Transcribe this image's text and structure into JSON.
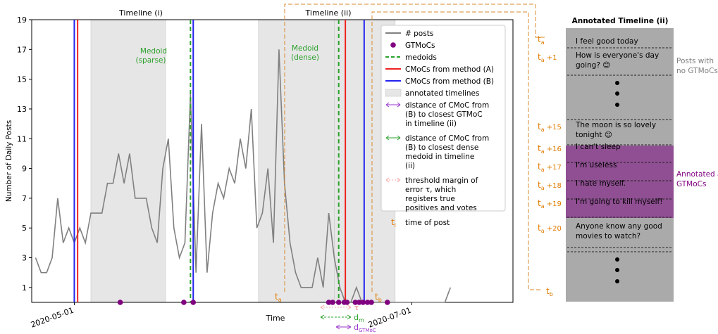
{
  "chart_data": {
    "type": "line",
    "xlabel": "Time",
    "ylabel": "Number of Daily Posts",
    "ylim": [
      0,
      19
    ],
    "y_ticks": [
      1,
      3,
      5,
      7,
      9,
      11,
      13,
      15,
      17,
      19
    ],
    "x_tick_labels": [
      "2020-05-01",
      "2020-07-01"
    ],
    "x_tick_days": [
      0,
      61
    ],
    "xlim_days": [
      -7.7,
      79.3
    ],
    "grid": false,
    "legend_position": "top-right",
    "series": [
      {
        "name": "# posts",
        "color": "#808080",
        "x_days": [
          -7,
          -6,
          -5,
          -4,
          -3,
          -2,
          -1,
          0,
          1,
          2,
          3,
          4,
          5,
          6,
          7,
          8,
          9,
          10,
          11,
          12,
          13,
          14,
          15,
          16,
          17,
          18,
          19,
          20,
          21,
          22,
          23,
          24,
          25,
          26,
          27,
          28,
          29,
          30,
          31,
          32,
          33,
          34,
          35,
          36,
          37,
          38,
          39,
          40,
          41,
          42,
          43,
          44,
          45,
          46,
          47,
          48,
          49,
          50,
          51,
          52,
          53,
          54,
          55,
          56,
          57,
          58,
          59,
          60,
          61,
          62,
          63,
          64,
          65,
          66,
          67,
          68
        ],
        "y": [
          3,
          2,
          2,
          3,
          7,
          4,
          5,
          4,
          5,
          4,
          6,
          6,
          6,
          8,
          8,
          10,
          8,
          10,
          7,
          7,
          7,
          5,
          4,
          9,
          11,
          5,
          3,
          4,
          14,
          2,
          12,
          2,
          6,
          8,
          7,
          9,
          8,
          11,
          9,
          13,
          5,
          6,
          9,
          4,
          17,
          8,
          4,
          2,
          1,
          1,
          1,
          3,
          1,
          6,
          3,
          1,
          0,
          0,
          1,
          0,
          0,
          0,
          0,
          0,
          0,
          0,
          0,
          0,
          0,
          0,
          0,
          0,
          0,
          0,
          0,
          1
        ]
      }
    ],
    "gtmoc_days": [
      8.3,
      19.8,
      21.5,
      46.0,
      46.7,
      47.8,
      48.8,
      49.3,
      50.8,
      51.5,
      52.2,
      53.0,
      53.7,
      56.6
    ],
    "medoids_days": [
      21.0,
      47.8
    ],
    "cmoc_method_a_days": [
      0.6,
      49.0
    ],
    "cmoc_method_b_days": [
      0.0,
      21.5,
      52.4
    ],
    "annotated_timelines_days": [
      [
        3.0,
        16.5
      ],
      [
        33.3,
        47.0
      ],
      [
        47.0,
        58.0
      ]
    ],
    "annotations": {
      "timeline_i": "Timeline (i)",
      "timeline_ii": "Timeline (ii)",
      "medoid_sparse": "Medoid (sparse)",
      "medoid_dense": "Medoid (dense)",
      "ta": "t",
      "ta_sub": "a",
      "tb": "t",
      "tb_sub": "b",
      "tau": "τ",
      "dm": "d",
      "dm_sub": "m",
      "dg": "d",
      "dg_sub": "GTMoC"
    },
    "legend": [
      {
        "label": "# posts",
        "kind": "line",
        "color": "#808080"
      },
      {
        "label": "GTMoCs",
        "kind": "dot",
        "color": "#800080"
      },
      {
        "label": "medoids",
        "kind": "dash",
        "color": "#2ca02c"
      },
      {
        "label": "CMoCs from method (A)",
        "kind": "line",
        "color": "#ee2222"
      },
      {
        "label": "CMoCs from method (B)",
        "kind": "line",
        "color": "#2222ee"
      },
      {
        "label": "annotated timelines",
        "kind": "box",
        "color": "#e6e6e6"
      },
      {
        "label": "distance of CMoC from (B) to closest GTMoC in timeline (ii)",
        "kind": "darrow",
        "color": "#9933cc"
      },
      {
        "label": "distance of CMoC from (B) to closest dense medoid in timeline (ii)",
        "kind": "darrow",
        "color": "#2ca02c"
      },
      {
        "label": "threshold margin of error τ, which registers true positives and votes",
        "kind": "darrow-dotted",
        "color": "#f4a6a6"
      },
      {
        "label": "time of post",
        "kind": "ti",
        "color": "#e07b00"
      }
    ]
  },
  "side_panel": {
    "title": "Annotated Timeline (ii)",
    "right_note_top": "Posts with no GTMoCs",
    "right_note_bottom": "Annotated as GTMoCs",
    "posts": [
      {
        "time": "t",
        "sub": "a",
        "suffix": "",
        "text": "I feel good today",
        "annotated": false
      },
      {
        "time": "t",
        "sub": "a",
        "suffix": " +1",
        "text": "How is everyone's day going? 😊",
        "annotated": false
      },
      {
        "time": "t",
        "sub": "a",
        "suffix": " +15",
        "text": "The moon is so lovely tonight 😊",
        "annotated": false
      },
      {
        "time": "t",
        "sub": "a",
        "suffix": " +16",
        "text": "I can't sleep",
        "annotated": true
      },
      {
        "time": "t",
        "sub": "a",
        "suffix": " +17",
        "text": "I'm useless",
        "annotated": true
      },
      {
        "time": "t",
        "sub": "a",
        "suffix": " +18",
        "text": "I hate myself.",
        "annotated": true
      },
      {
        "time": "t",
        "sub": "a",
        "suffix": " +19",
        "text": "I'm going to kill myself!",
        "annotated": true
      },
      {
        "time": "t",
        "sub": "a",
        "suffix": " +20",
        "text": "Anyone know any good movies to watch?",
        "annotated": false
      }
    ],
    "end_label": "t",
    "end_sub": "b"
  }
}
